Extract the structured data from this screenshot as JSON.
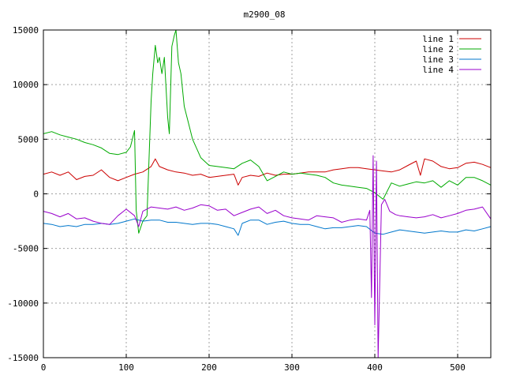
{
  "chart_data": {
    "type": "line",
    "title": "m2900_08",
    "xlabel": "",
    "ylabel": "",
    "xlim": [
      0,
      540
    ],
    "ylim": [
      -15000,
      15000
    ],
    "xticks": [
      0,
      100,
      200,
      300,
      400,
      500
    ],
    "yticks": [
      -15000,
      -10000,
      -5000,
      0,
      5000,
      10000,
      15000
    ],
    "grid": true,
    "legend_position": "top-right",
    "series": [
      {
        "name": "line 1",
        "color": "#cc0000",
        "x": [
          0,
          10,
          20,
          30,
          40,
          50,
          60,
          70,
          80,
          90,
          100,
          110,
          120,
          130,
          135,
          140,
          150,
          160,
          170,
          180,
          190,
          200,
          210,
          220,
          230,
          235,
          240,
          250,
          260,
          270,
          280,
          290,
          300,
          310,
          320,
          330,
          340,
          350,
          360,
          370,
          380,
          390,
          400,
          410,
          420,
          430,
          440,
          450,
          455,
          460,
          470,
          480,
          490,
          500,
          510,
          520,
          530,
          540
        ],
        "values": [
          1800,
          2000,
          1700,
          2000,
          1300,
          1600,
          1700,
          2200,
          1500,
          1200,
          1500,
          1800,
          2000,
          2500,
          3200,
          2500,
          2200,
          2000,
          1900,
          1700,
          1800,
          1500,
          1600,
          1700,
          1800,
          800,
          1500,
          1700,
          1600,
          1900,
          1700,
          1800,
          1800,
          1900,
          2000,
          2000,
          2000,
          2200,
          2300,
          2400,
          2400,
          2300,
          2200,
          2100,
          2000,
          2200,
          2600,
          3000,
          1700,
          3200,
          3000,
          2500,
          2300,
          2400,
          2800,
          2900,
          2700,
          2400
        ]
      },
      {
        "name": "line 2",
        "color": "#00aa00",
        "x": [
          0,
          10,
          20,
          30,
          40,
          50,
          60,
          70,
          80,
          90,
          100,
          105,
          110,
          112,
          115,
          120,
          125,
          130,
          132,
          135,
          138,
          140,
          143,
          146,
          150,
          152,
          155,
          158,
          160,
          163,
          166,
          170,
          175,
          180,
          190,
          200,
          210,
          220,
          230,
          240,
          250,
          260,
          270,
          280,
          290,
          300,
          310,
          320,
          330,
          340,
          350,
          360,
          370,
          380,
          390,
          400,
          410,
          420,
          430,
          440,
          450,
          460,
          470,
          480,
          490,
          500,
          510,
          520,
          530,
          540
        ],
        "values": [
          5500,
          5700,
          5400,
          5200,
          5000,
          4700,
          4500,
          4200,
          3700,
          3600,
          3800,
          4300,
          5800,
          -1500,
          -3600,
          -2500,
          -2000,
          8500,
          11000,
          13600,
          12000,
          12500,
          11000,
          12500,
          7000,
          5500,
          13500,
          14500,
          15000,
          12000,
          11000,
          8000,
          6500,
          5000,
          3300,
          2600,
          2500,
          2400,
          2300,
          2800,
          3100,
          2500,
          1200,
          1600,
          2000,
          1800,
          1900,
          1800,
          1700,
          1500,
          1000,
          800,
          700,
          600,
          500,
          100,
          -500,
          1000,
          700,
          900,
          1100,
          1000,
          1200,
          600,
          1200,
          800,
          1500,
          1500,
          1200,
          800
        ]
      },
      {
        "name": "line 3",
        "color": "#0077cc",
        "x": [
          0,
          10,
          20,
          30,
          40,
          50,
          60,
          70,
          80,
          90,
          100,
          110,
          120,
          130,
          140,
          150,
          160,
          170,
          180,
          190,
          200,
          210,
          220,
          230,
          235,
          240,
          250,
          260,
          270,
          280,
          290,
          300,
          310,
          320,
          330,
          340,
          350,
          360,
          370,
          380,
          390,
          400,
          410,
          420,
          430,
          440,
          450,
          460,
          470,
          480,
          490,
          500,
          510,
          520,
          530,
          540
        ],
        "values": [
          -2700,
          -2800,
          -3000,
          -2900,
          -3000,
          -2800,
          -2800,
          -2700,
          -2800,
          -2700,
          -2500,
          -2300,
          -2500,
          -2400,
          -2400,
          -2600,
          -2600,
          -2700,
          -2800,
          -2700,
          -2700,
          -2800,
          -3000,
          -3200,
          -3800,
          -2700,
          -2400,
          -2400,
          -2800,
          -2600,
          -2500,
          -2700,
          -2800,
          -2800,
          -3000,
          -3200,
          -3100,
          -3100,
          -3000,
          -2900,
          -3000,
          -3600,
          -3700,
          -3500,
          -3300,
          -3400,
          -3500,
          -3600,
          -3500,
          -3400,
          -3500,
          -3500,
          -3300,
          -3400,
          -3200,
          -3000
        ]
      },
      {
        "name": "line 4",
        "color": "#9900cc",
        "x": [
          0,
          10,
          20,
          30,
          40,
          50,
          60,
          70,
          80,
          90,
          100,
          110,
          115,
          120,
          130,
          140,
          150,
          160,
          170,
          180,
          190,
          200,
          210,
          220,
          230,
          240,
          250,
          260,
          270,
          280,
          290,
          300,
          310,
          320,
          330,
          340,
          350,
          360,
          370,
          380,
          390,
          394,
          396,
          398,
          400,
          402,
          404,
          408,
          412,
          418,
          425,
          430,
          440,
          450,
          460,
          470,
          480,
          490,
          500,
          510,
          520,
          530,
          540
        ],
        "values": [
          -1600,
          -1800,
          -2100,
          -1800,
          -2300,
          -2200,
          -2500,
          -2700,
          -2800,
          -2000,
          -1400,
          -2000,
          -3000,
          -1600,
          -1200,
          -1300,
          -1400,
          -1200,
          -1500,
          -1300,
          -1000,
          -1100,
          -1500,
          -1400,
          -2000,
          -1700,
          -1400,
          -1200,
          -1800,
          -1500,
          -2000,
          -2200,
          -2300,
          -2400,
          -2000,
          -2100,
          -2200,
          -2600,
          -2400,
          -2300,
          -2400,
          -1500,
          -9500,
          3500,
          -12000,
          3000,
          -15000,
          -1000,
          -500,
          -1600,
          -1900,
          -2000,
          -2100,
          -2200,
          -2100,
          -1900,
          -2200,
          -2000,
          -1800,
          -1500,
          -1400,
          -1200,
          -2300
        ]
      }
    ]
  }
}
